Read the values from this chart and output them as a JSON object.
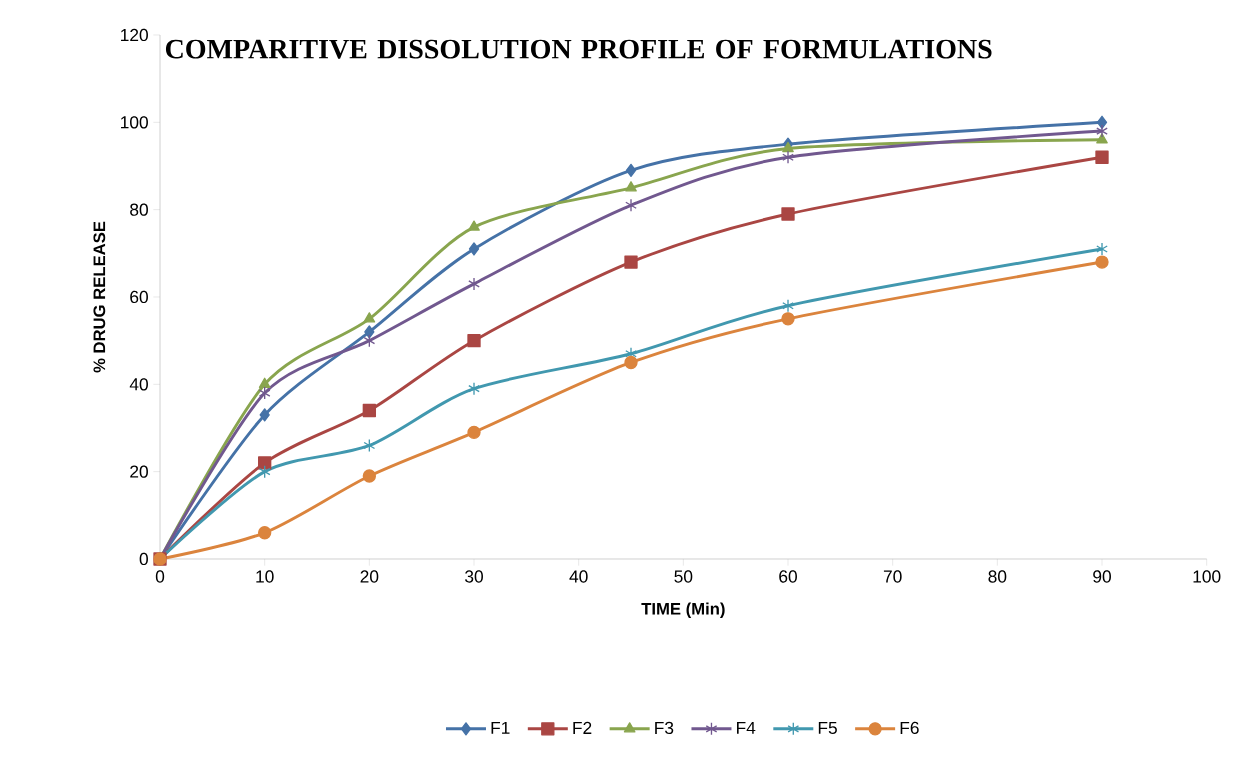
{
  "chart_data": {
    "type": "line",
    "title": "COMPARITIVE DISSOLUTION PROFILE OF FORMULATIONS",
    "xlabel": "TIME (Min)",
    "ylabel": "% DRUG RELEASE",
    "x": [
      0,
      10,
      20,
      30,
      45,
      60,
      90
    ],
    "series": [
      {
        "name": "F1",
        "color": "#4572a7",
        "marker": "diamond",
        "values": [
          0,
          33,
          52,
          71,
          89,
          95,
          100
        ]
      },
      {
        "name": "F2",
        "color": "#aa4643",
        "marker": "square",
        "values": [
          0,
          22,
          34,
          50,
          68,
          79,
          92
        ]
      },
      {
        "name": "F3",
        "color": "#89a54e",
        "marker": "triangle",
        "values": [
          0,
          40,
          55,
          76,
          85,
          94,
          96
        ]
      },
      {
        "name": "F4",
        "color": "#71588f",
        "marker": "cross",
        "values": [
          0,
          38,
          50,
          63,
          81,
          92,
          98
        ]
      },
      {
        "name": "F5",
        "color": "#4198af",
        "marker": "cross",
        "values": [
          0,
          20,
          26,
          39,
          47,
          58,
          71
        ]
      },
      {
        "name": "F6",
        "color": "#db843d",
        "marker": "circle",
        "values": [
          0,
          6,
          19,
          29,
          45,
          55,
          68
        ]
      }
    ],
    "xlim": [
      0,
      100
    ],
    "xticks": [
      0,
      10,
      20,
      30,
      40,
      50,
      60,
      70,
      80,
      90,
      100
    ],
    "ylim": [
      0,
      120
    ],
    "yticks": [
      0,
      20,
      40,
      60,
      80,
      100,
      120
    ],
    "grid": false,
    "legend": "bottom",
    "line_style": "solid"
  }
}
